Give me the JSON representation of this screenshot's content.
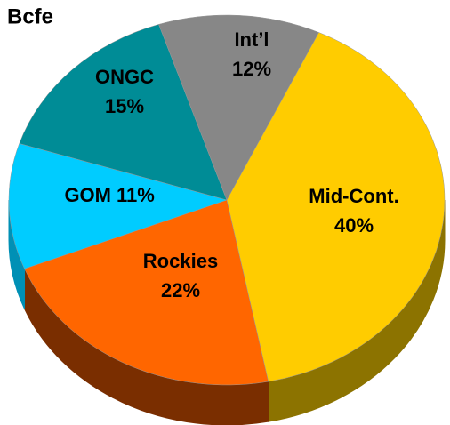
{
  "chart_data": {
    "type": "pie",
    "title": "Bcfe",
    "categories": [
      "Mid-Cont.",
      "Rockies",
      "GOM",
      "ONGC",
      "Int’l"
    ],
    "values": [
      40,
      22,
      11,
      15,
      12
    ],
    "value_labels": [
      "40%",
      "22%",
      "11%",
      "15%",
      "12%"
    ],
    "colors": [
      "#ffcc00",
      "#ff6600",
      "#00ccff",
      "#008c96",
      "#878787"
    ],
    "side_colors": [
      "#8c7300",
      "#7a2e00",
      "#0090b5",
      "#005a60",
      "#555555"
    ]
  }
}
